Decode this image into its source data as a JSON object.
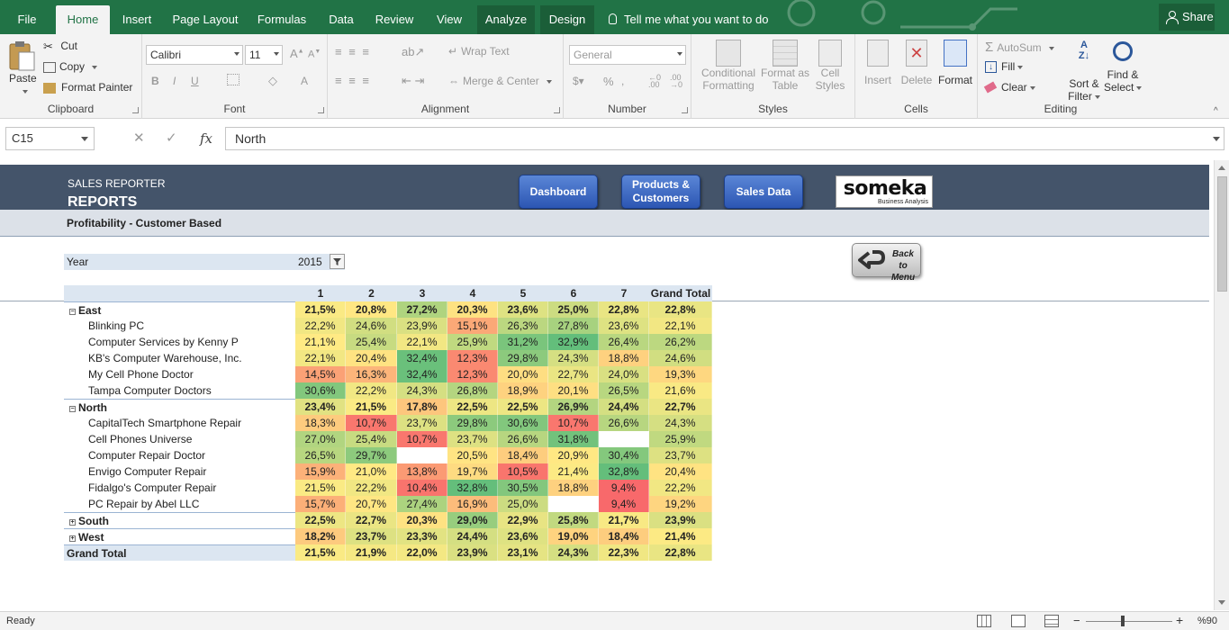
{
  "ribbon_tabs": [
    {
      "label": "File"
    },
    {
      "label": "Home"
    },
    {
      "label": "Insert"
    },
    {
      "label": "Page Layout"
    },
    {
      "label": "Formulas"
    },
    {
      "label": "Data"
    },
    {
      "label": "Review"
    },
    {
      "label": "View"
    },
    {
      "label": "Analyze"
    },
    {
      "label": "Design"
    }
  ],
  "tell_me": "Tell me what you want to do",
  "share": "Share",
  "clipboard": {
    "paste": "Paste",
    "cut": "Cut",
    "copy": "Copy",
    "format_painter": "Format Painter",
    "group": "Clipboard"
  },
  "font": {
    "name": "Calibri",
    "size": "11",
    "group": "Font"
  },
  "alignment": {
    "wrap": "Wrap Text",
    "merge": "Merge & Center",
    "group": "Alignment"
  },
  "number": {
    "format": "General",
    "group": "Number"
  },
  "styles": {
    "conditional": "Conditional",
    "conditional2": "Formatting",
    "format_as": "Format as",
    "format_as2": "Table",
    "cell": "Cell",
    "cell2": "Styles",
    "group": "Styles"
  },
  "cells": {
    "insert": "Insert",
    "delete": "Delete",
    "format": "Format",
    "group": "Cells"
  },
  "editing": {
    "autosum": "AutoSum",
    "fill": "Fill",
    "clear": "Clear",
    "sort": "Sort &",
    "sort2": "Filter",
    "find": "Find &",
    "find2": "Select",
    "group": "Editing"
  },
  "formula_bar": {
    "cell_ref": "C15",
    "value": "North"
  },
  "report": {
    "small_title": "SALES REPORTER",
    "big_title": "REPORTS",
    "subtitle": "Profitability - Customer Based",
    "nav": {
      "dashboard": "Dashboard",
      "products1": "Products &",
      "products2": "Customers",
      "sales": "Sales Data"
    },
    "logo": {
      "brand": "someka",
      "tagline": "Business Analysis"
    },
    "back1": "Back to",
    "back2": "Menu",
    "year_label": "Year",
    "year_value": "2015"
  },
  "pivot": {
    "columns": [
      "1",
      "2",
      "3",
      "4",
      "5",
      "6",
      "7",
      "Grand Total"
    ],
    "rows": [
      {
        "label": "East",
        "kind": "region",
        "toggle": "⊖",
        "values": [
          "21,5%",
          "20,8%",
          "27,2%",
          "20,3%",
          "23,6%",
          "25,0%",
          "22,8%",
          "22,8%"
        ]
      },
      {
        "label": "Blinking PC",
        "kind": "item",
        "values": [
          "22,2%",
          "24,6%",
          "23,9%",
          "15,1%",
          "26,3%",
          "27,8%",
          "23,6%",
          "22,1%"
        ]
      },
      {
        "label": "Computer Services by Kenny P",
        "kind": "item",
        "values": [
          "21,1%",
          "25,4%",
          "22,1%",
          "25,9%",
          "31,2%",
          "32,9%",
          "26,4%",
          "26,2%"
        ]
      },
      {
        "label": "KB's Computer Warehouse, Inc.",
        "kind": "item",
        "values": [
          "22,1%",
          "20,4%",
          "32,4%",
          "12,3%",
          "29,8%",
          "24,3%",
          "18,8%",
          "24,6%"
        ]
      },
      {
        "label": "My Cell Phone Doctor",
        "kind": "item",
        "values": [
          "14,5%",
          "16,3%",
          "32,4%",
          "12,3%",
          "20,0%",
          "22,7%",
          "24,0%",
          "19,3%"
        ]
      },
      {
        "label": "Tampa Computer Doctors",
        "kind": "item",
        "values": [
          "30,6%",
          "22,2%",
          "24,3%",
          "26,8%",
          "18,9%",
          "20,1%",
          "26,5%",
          "21,6%"
        ]
      },
      {
        "label": "North",
        "kind": "region",
        "toggle": "⊖",
        "values": [
          "23,4%",
          "21,5%",
          "17,8%",
          "22,5%",
          "22,5%",
          "26,9%",
          "24,4%",
          "22,7%"
        ]
      },
      {
        "label": "CapitalTech Smartphone Repair",
        "kind": "item",
        "values": [
          "18,3%",
          "10,7%",
          "23,7%",
          "29,8%",
          "30,6%",
          "10,7%",
          "26,6%",
          "24,3%"
        ]
      },
      {
        "label": "Cell Phones Universe",
        "kind": "item",
        "values": [
          "27,0%",
          "25,4%",
          "10,7%",
          "23,7%",
          "26,6%",
          "31,8%",
          "",
          "25,9%"
        ]
      },
      {
        "label": "Computer Repair Doctor",
        "kind": "item",
        "values": [
          "26,5%",
          "29,7%",
          "",
          "20,5%",
          "18,4%",
          "20,9%",
          "30,4%",
          "23,7%"
        ]
      },
      {
        "label": "Envigo Computer Repair",
        "kind": "item",
        "values": [
          "15,9%",
          "21,0%",
          "13,8%",
          "19,7%",
          "10,5%",
          "21,4%",
          "32,8%",
          "20,4%"
        ]
      },
      {
        "label": "Fidalgo's Computer Repair",
        "kind": "item",
        "values": [
          "21,5%",
          "22,2%",
          "10,4%",
          "32,8%",
          "30,5%",
          "18,8%",
          "9,4%",
          "22,2%"
        ]
      },
      {
        "label": "PC Repair by Abel LLC",
        "kind": "item",
        "values": [
          "15,7%",
          "20,7%",
          "27,4%",
          "16,9%",
          "25,0%",
          "",
          "9,4%",
          "19,2%"
        ]
      },
      {
        "label": "South",
        "kind": "region",
        "toggle": "⊕",
        "values": [
          "22,5%",
          "22,7%",
          "20,3%",
          "29,0%",
          "22,9%",
          "25,8%",
          "21,7%",
          "23,9%"
        ]
      },
      {
        "label": "West",
        "kind": "region",
        "toggle": "⊕",
        "values": [
          "18,2%",
          "23,7%",
          "23,3%",
          "24,4%",
          "23,6%",
          "19,0%",
          "18,4%",
          "21,4%"
        ]
      },
      {
        "label": "Grand Total",
        "kind": "total",
        "values": [
          "21,5%",
          "21,9%",
          "22,0%",
          "23,9%",
          "23,1%",
          "24,3%",
          "22,3%",
          "22,8%"
        ]
      }
    ]
  },
  "status": {
    "ready": "Ready",
    "zoom": "%90"
  }
}
